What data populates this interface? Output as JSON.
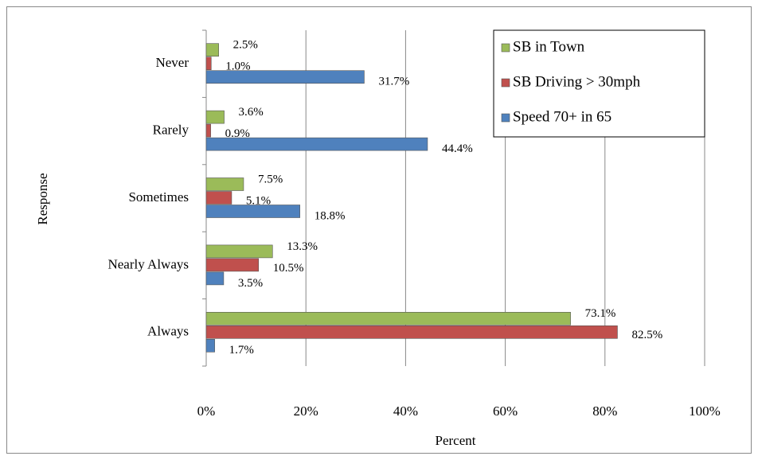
{
  "chart_data": {
    "type": "hbar",
    "xlabel": "Percent",
    "ylabel": "Response",
    "categories": [
      "Never",
      "Rarely",
      "Sometimes",
      "Nearly Always",
      "Always"
    ],
    "series": [
      {
        "name": "SB in Town",
        "color": "#9bbb59",
        "values": [
          2.5,
          3.6,
          7.5,
          13.3,
          73.1
        ],
        "value_labels": [
          "2.5%",
          "3.6%",
          "7.5%",
          "13.3%",
          "73.1%"
        ]
      },
      {
        "name": "SB Driving > 30mph",
        "color": "#c0504d",
        "values": [
          1.0,
          0.9,
          5.1,
          10.5,
          82.5
        ],
        "value_labels": [
          "1.0%",
          "0.9%",
          "5.1%",
          "10.5%",
          "82.5%"
        ]
      },
      {
        "name": "Speed 70+ in 65",
        "color": "#4f81bd",
        "values": [
          31.7,
          44.4,
          18.8,
          3.5,
          1.7
        ],
        "value_labels": [
          "31.7%",
          "44.4%",
          "18.8%",
          "3.5%",
          "1.7%"
        ]
      }
    ],
    "xlim": [
      0,
      100
    ],
    "xticks": [
      {
        "value": 0,
        "label": "0%"
      },
      {
        "value": 20,
        "label": "20%"
      },
      {
        "value": 40,
        "label": "40%"
      },
      {
        "value": 60,
        "label": "60%"
      },
      {
        "value": 80,
        "label": "80%"
      },
      {
        "value": 100,
        "label": "100%"
      }
    ],
    "grid": true,
    "legend": "upper right"
  }
}
